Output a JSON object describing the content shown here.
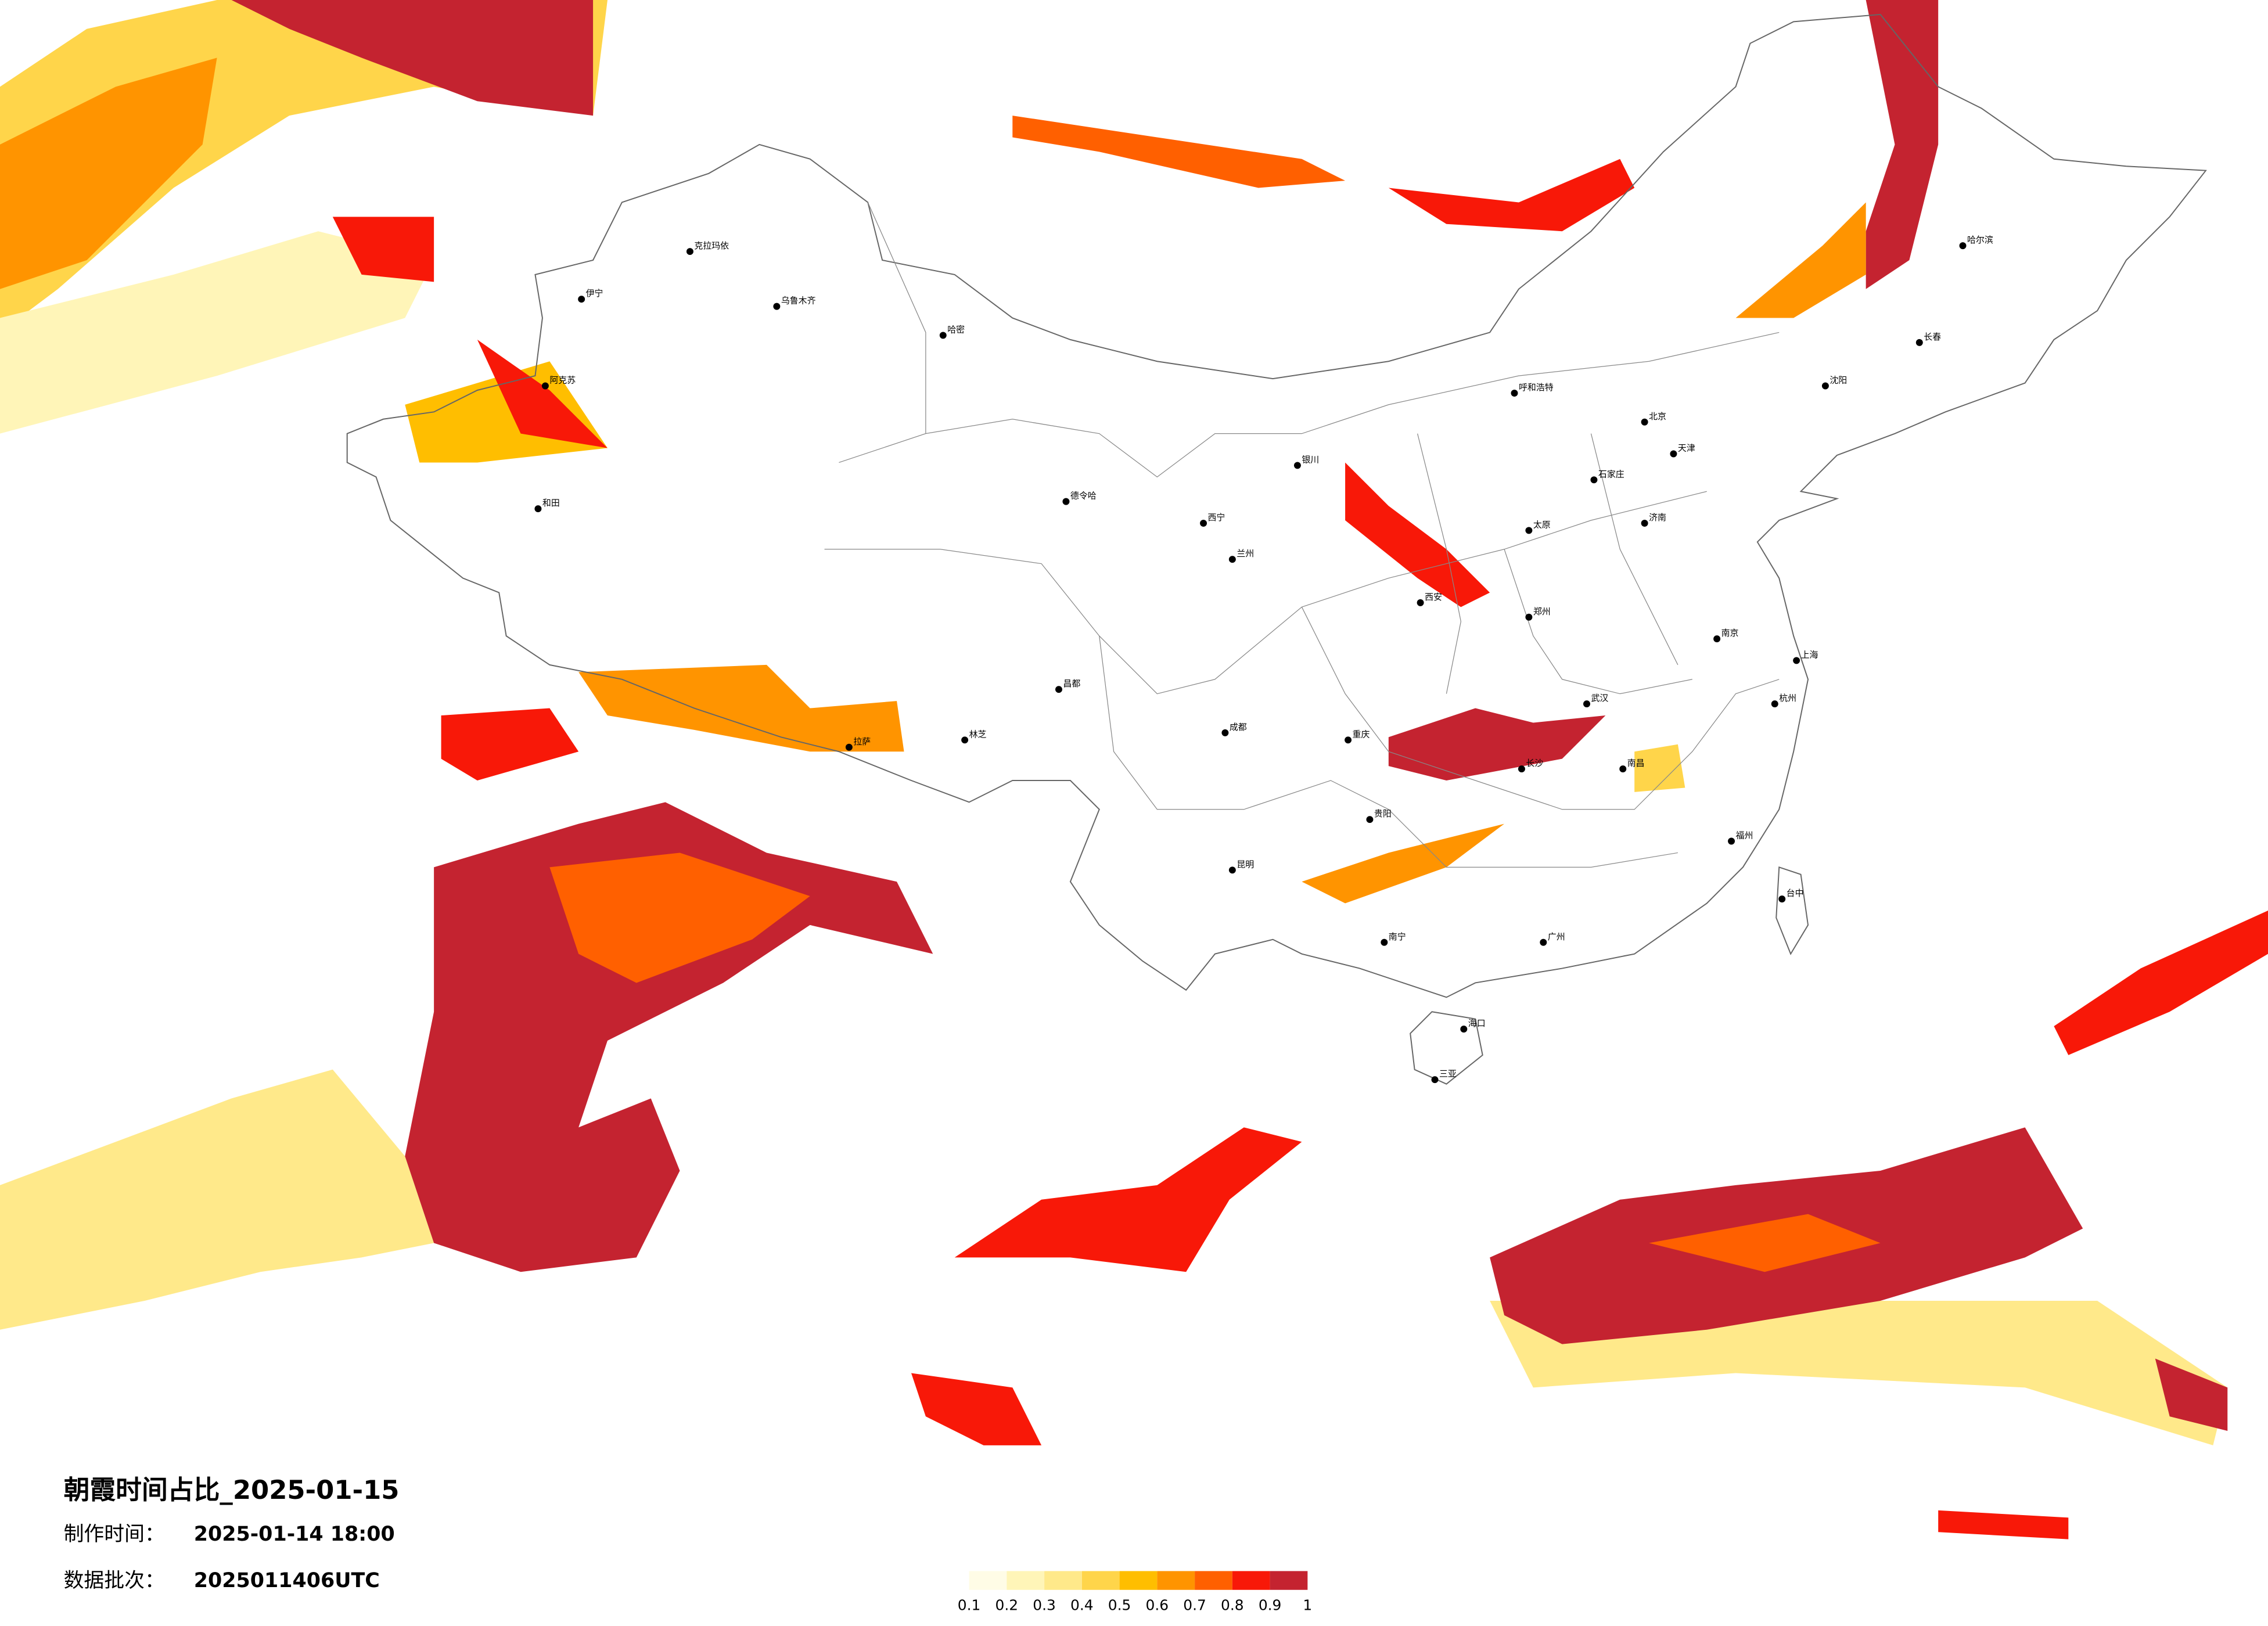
{
  "title": "朝霞时间占比_2025-01-15",
  "info": [
    {
      "label": "制作时间：",
      "value": "2025-01-14 18:00"
    },
    {
      "label": "数据批次：",
      "value": "2025011406UTC"
    }
  ],
  "legend": {
    "colors": [
      "#fffce6",
      "#fff5b8",
      "#ffe98a",
      "#ffd54a",
      "#ffbe00",
      "#ff9400",
      "#ff6000",
      "#f81808",
      "#c42330"
    ],
    "ticks": [
      0.1,
      0.2,
      0.3,
      0.4,
      0.5,
      0.6,
      0.7,
      0.8,
      0.9,
      1
    ]
  },
  "cities": [
    "北京",
    "天津",
    "石家庄",
    "太原",
    "呼和浩特",
    "沈阳",
    "长春",
    "哈尔滨",
    "乌鲁木齐",
    "拉萨",
    "西宁",
    "兰州",
    "银川",
    "西安",
    "成都",
    "重庆",
    "昆明",
    "贵阳",
    "南宁",
    "广州",
    "长沙",
    "武汉",
    "南昌",
    "福州",
    "杭州",
    "上海",
    "南京",
    "济南",
    "郑州",
    "台中",
    "海口",
    "三亚",
    "和田",
    "克拉玛依",
    "哈密",
    "德令哈",
    "阿克苏",
    "伊宁",
    "林芝",
    "昌都"
  ]
}
